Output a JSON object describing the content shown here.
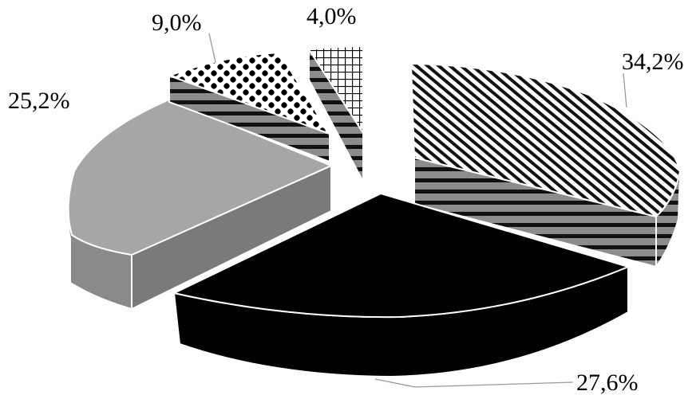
{
  "chart_data": {
    "type": "pie",
    "style": "3d-exploded",
    "legend": "none",
    "slices": [
      {
        "label": "34,2%",
        "value": 34.2,
        "fill": "diagonal-stripes",
        "side": "horizontal-stripes"
      },
      {
        "label": "27,6%",
        "value": 27.6,
        "fill": "#000000"
      },
      {
        "label": "25,2%",
        "value": 25.2,
        "fill": "#a6a6a6"
      },
      {
        "label": "9,0%",
        "value": 9.0,
        "fill": "checkerboard",
        "side": "horizontal-stripes"
      },
      {
        "label": "4,0%",
        "value": 4.0,
        "fill": "grid",
        "side": "horizontal-stripes"
      }
    ]
  }
}
